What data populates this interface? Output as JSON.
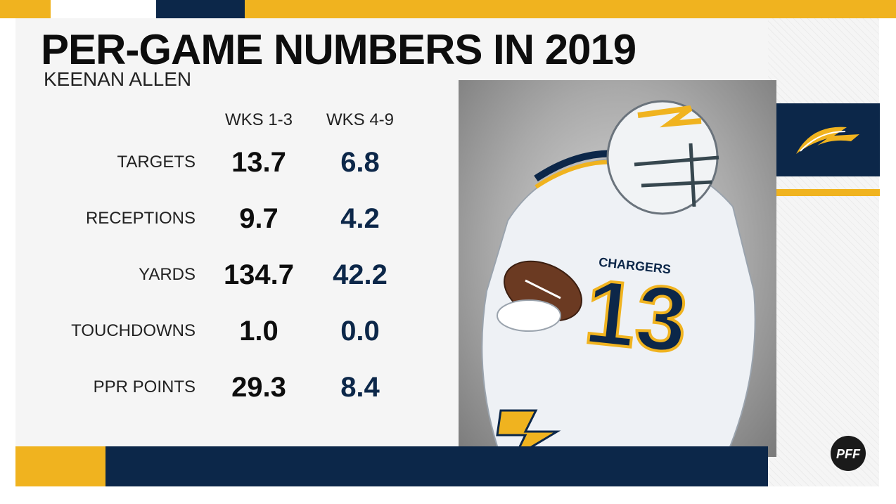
{
  "header": {
    "title": "PER-GAME NUMBERS IN 2019",
    "subtitle": "KEENAN ALLEN"
  },
  "table": {
    "columns": [
      "WKS 1-3",
      "WKS 4-9"
    ],
    "rows": [
      {
        "label": "TARGETS",
        "a": "13.7",
        "b": "6.8"
      },
      {
        "label": "RECEPTIONS",
        "a": "9.7",
        "b": "4.2"
      },
      {
        "label": "YARDS",
        "a": "134.7",
        "b": "42.2"
      },
      {
        "label": "TOUCHDOWNS",
        "a": "1.0",
        "b": "0.0"
      },
      {
        "label": "PPR POINTS",
        "a": "29.3",
        "b": "8.4"
      }
    ]
  },
  "player_photo": {
    "jersey_number": "13",
    "jersey_text": "CHARGERS"
  },
  "colors": {
    "navy": "#0c2749",
    "gold": "#f0b31f",
    "text_dark": "#0d0d0d",
    "panel": "#f5f5f5"
  },
  "icons": {
    "team_logo": "bolt-logo-icon",
    "brand_logo": "pff-logo-icon"
  }
}
